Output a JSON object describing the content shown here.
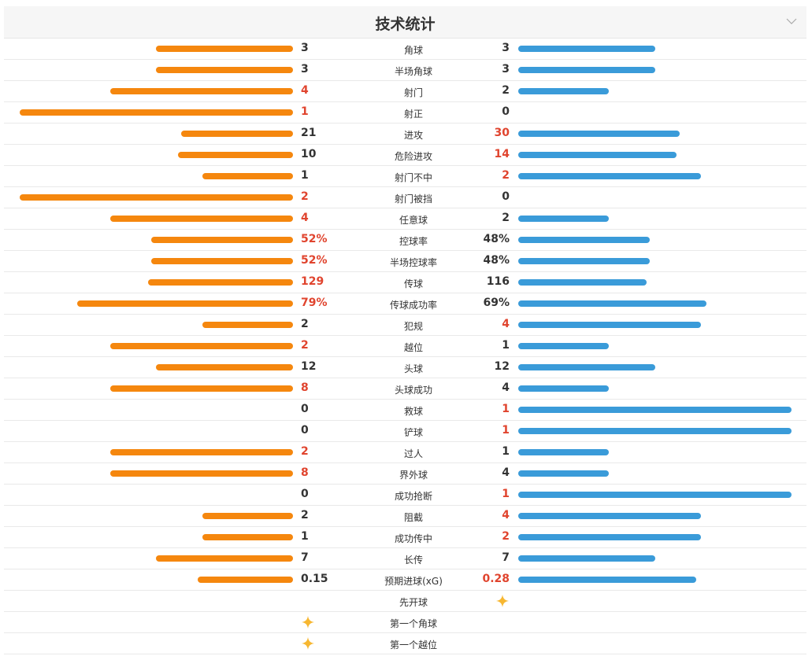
{
  "title": "技术统计",
  "icons": {
    "collapse": "chevron-down-icon",
    "marker": "sparkle-star-icon"
  },
  "colors": {
    "home": "#f5870e",
    "away": "#3a9bd9",
    "highlight": "#e0442e",
    "star": "#f7b731"
  },
  "stats": [
    {
      "label": "角球",
      "home": "3",
      "away": "3",
      "home_frac": 0.5,
      "away_frac": 0.5,
      "hi": "none"
    },
    {
      "label": "半场角球",
      "home": "3",
      "away": "3",
      "home_frac": 0.5,
      "away_frac": 0.5,
      "hi": "none"
    },
    {
      "label": "射门",
      "home": "4",
      "away": "2",
      "home_frac": 0.67,
      "away_frac": 0.33,
      "hi": "home"
    },
    {
      "label": "射正",
      "home": "1",
      "away": "0",
      "home_frac": 1.0,
      "away_frac": 0.0,
      "hi": "home"
    },
    {
      "label": "进攻",
      "home": "21",
      "away": "30",
      "home_frac": 0.41,
      "away_frac": 0.59,
      "hi": "away"
    },
    {
      "label": "危险进攻",
      "home": "10",
      "away": "14",
      "home_frac": 0.42,
      "away_frac": 0.58,
      "hi": "away"
    },
    {
      "label": "射门不中",
      "home": "1",
      "away": "2",
      "home_frac": 0.33,
      "away_frac": 0.67,
      "hi": "away"
    },
    {
      "label": "射门被挡",
      "home": "2",
      "away": "0",
      "home_frac": 1.0,
      "away_frac": 0.0,
      "hi": "home"
    },
    {
      "label": "任意球",
      "home": "4",
      "away": "2",
      "home_frac": 0.67,
      "away_frac": 0.33,
      "hi": "home"
    },
    {
      "label": "控球率",
      "home": "52%",
      "away": "48%",
      "home_frac": 0.52,
      "away_frac": 0.48,
      "hi": "home"
    },
    {
      "label": "半场控球率",
      "home": "52%",
      "away": "48%",
      "home_frac": 0.52,
      "away_frac": 0.48,
      "hi": "home"
    },
    {
      "label": "传球",
      "home": "129",
      "away": "116",
      "home_frac": 0.53,
      "away_frac": 0.47,
      "hi": "home"
    },
    {
      "label": "传球成功率",
      "home": "79%",
      "away": "69%",
      "home_frac": 0.79,
      "away_frac": 0.69,
      "hi": "home"
    },
    {
      "label": "犯规",
      "home": "2",
      "away": "4",
      "home_frac": 0.33,
      "away_frac": 0.67,
      "hi": "away"
    },
    {
      "label": "越位",
      "home": "2",
      "away": "1",
      "home_frac": 0.67,
      "away_frac": 0.33,
      "hi": "home"
    },
    {
      "label": "头球",
      "home": "12",
      "away": "12",
      "home_frac": 0.5,
      "away_frac": 0.5,
      "hi": "none"
    },
    {
      "label": "头球成功",
      "home": "8",
      "away": "4",
      "home_frac": 0.67,
      "away_frac": 0.33,
      "hi": "home"
    },
    {
      "label": "救球",
      "home": "0",
      "away": "1",
      "home_frac": 0.0,
      "away_frac": 1.0,
      "hi": "away"
    },
    {
      "label": "铲球",
      "home": "0",
      "away": "1",
      "home_frac": 0.0,
      "away_frac": 1.0,
      "hi": "away"
    },
    {
      "label": "过人",
      "home": "2",
      "away": "1",
      "home_frac": 0.67,
      "away_frac": 0.33,
      "hi": "home"
    },
    {
      "label": "界外球",
      "home": "8",
      "away": "4",
      "home_frac": 0.67,
      "away_frac": 0.33,
      "hi": "home"
    },
    {
      "label": "成功抢断",
      "home": "0",
      "away": "1",
      "home_frac": 0.0,
      "away_frac": 1.0,
      "hi": "away"
    },
    {
      "label": "阻截",
      "home": "2",
      "away": "4",
      "home_frac": 0.33,
      "away_frac": 0.67,
      "hi": "away"
    },
    {
      "label": "成功传中",
      "home": "1",
      "away": "2",
      "home_frac": 0.33,
      "away_frac": 0.67,
      "hi": "away"
    },
    {
      "label": "长传",
      "home": "7",
      "away": "7",
      "home_frac": 0.5,
      "away_frac": 0.5,
      "hi": "none"
    },
    {
      "label": "预期进球(xG)",
      "home": "0.15",
      "away": "0.28",
      "home_frac": 0.35,
      "away_frac": 0.65,
      "hi": "away"
    }
  ],
  "events": [
    {
      "label": "先开球",
      "side": "away"
    },
    {
      "label": "第一个角球",
      "side": "home"
    },
    {
      "label": "第一个越位",
      "side": "home"
    }
  ]
}
